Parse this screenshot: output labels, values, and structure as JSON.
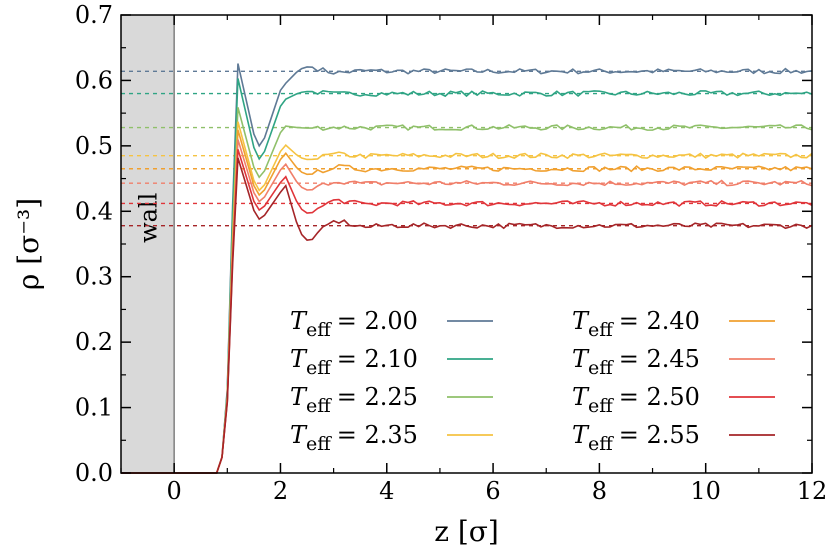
{
  "chart_data": {
    "type": "line",
    "title": "",
    "xlabel": "z [σ]",
    "ylabel": "ρ [σ⁻³]",
    "xlim": [
      -1,
      12
    ],
    "ylim": [
      0.0,
      0.7
    ],
    "xticks": [
      "0",
      "2",
      "4",
      "6",
      "8",
      "10",
      "12"
    ],
    "yticks": [
      "0.0",
      "0.1",
      "0.2",
      "0.3",
      "0.4",
      "0.5",
      "0.6",
      "0.7"
    ],
    "wall": {
      "label": "wall",
      "x_range": [
        -1,
        0
      ],
      "color": "#d9d9d9"
    },
    "legend_placement": "lower-right",
    "grid": false,
    "series": [
      {
        "name": "T_eff = 2.00",
        "legend_symbol": "T",
        "legend_subscript": "eff",
        "legend_value": "= 2.00",
        "color": "#5f7a96",
        "bulk": 0.614,
        "peak1": 0.633,
        "min1": 0.5,
        "peak2": 0.597
      },
      {
        "name": "T_eff = 2.10",
        "legend_symbol": "T",
        "legend_subscript": "eff",
        "legend_value": "= 2.10",
        "color": "#2fa484",
        "bulk": 0.58,
        "peak1": 0.61,
        "min1": 0.48,
        "peak2": 0.572
      },
      {
        "name": "T_eff = 2.25",
        "legend_symbol": "T",
        "legend_subscript": "eff",
        "legend_value": "= 2.25",
        "color": "#8fc06a",
        "bulk": 0.528,
        "peak1": 0.565,
        "min1": 0.452,
        "peak2": 0.53
      },
      {
        "name": "T_eff = 2.35",
        "legend_symbol": "T",
        "legend_subscript": "eff",
        "legend_value": "= 2.35",
        "color": "#f5c342",
        "bulk": 0.485,
        "peak1": 0.543,
        "min1": 0.432,
        "peak2": 0.5
      },
      {
        "name": "T_eff = 2.40",
        "legend_symbol": "T",
        "legend_subscript": "eff",
        "legend_value": "= 2.40",
        "color": "#f0a030",
        "bulk": 0.465,
        "peak1": 0.53,
        "min1": 0.425,
        "peak2": 0.487
      },
      {
        "name": "T_eff = 2.45",
        "legend_symbol": "T",
        "legend_subscript": "eff",
        "legend_value": "= 2.45",
        "color": "#f07f6a",
        "bulk": 0.443,
        "peak1": 0.515,
        "min1": 0.415,
        "peak2": 0.47
      },
      {
        "name": "T_eff = 2.50",
        "legend_symbol": "T",
        "legend_subscript": "eff",
        "legend_value": "= 2.50",
        "color": "#e0353a",
        "bulk": 0.412,
        "peak1": 0.5,
        "min1": 0.402,
        "peak2": 0.45
      },
      {
        "name": "T_eff = 2.55",
        "legend_symbol": "T",
        "legend_subscript": "eff",
        "legend_value": "= 2.55",
        "color": "#a52528",
        "bulk": 0.378,
        "peak1": 0.487,
        "min1": 0.388,
        "peak2": 0.435
      }
    ]
  }
}
